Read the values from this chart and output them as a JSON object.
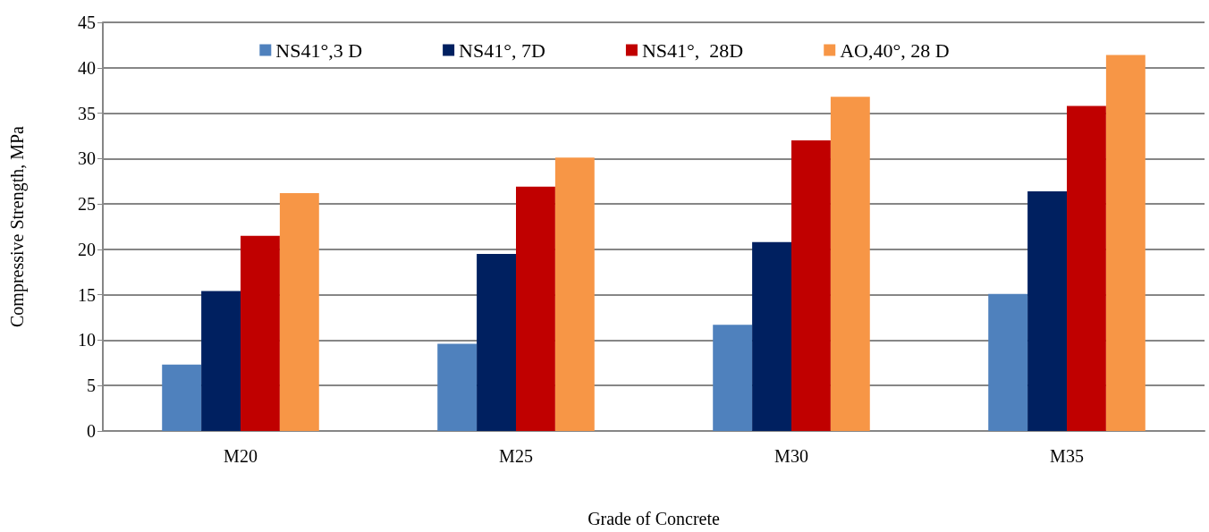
{
  "chart_data": {
    "type": "bar",
    "xlabel": "Grade of Concrete",
    "ylabel": "Compressive Strength, MPa",
    "categories": [
      "M20",
      "M25",
      "M30",
      "M35"
    ],
    "series": [
      {
        "name": "NS41°,3 D",
        "color": "#4f81bd",
        "values": [
          7.3,
          9.6,
          11.7,
          15.1
        ]
      },
      {
        "name": "NS41°, 7D",
        "color": "#002060",
        "values": [
          15.4,
          19.5,
          20.8,
          26.4
        ]
      },
      {
        "name": "NS41°,  28D",
        "color": "#c00000",
        "values": [
          21.5,
          26.9,
          32.0,
          35.8
        ]
      },
      {
        "name": "AO,40°, 28 D",
        "color": "#f79646",
        "values": [
          26.2,
          30.1,
          36.8,
          41.4
        ]
      }
    ],
    "ylim": [
      0,
      45
    ],
    "yticks": [
      0,
      5,
      10,
      15,
      20,
      25,
      30,
      35,
      40,
      45
    ],
    "grid": "y",
    "legend": "top"
  }
}
